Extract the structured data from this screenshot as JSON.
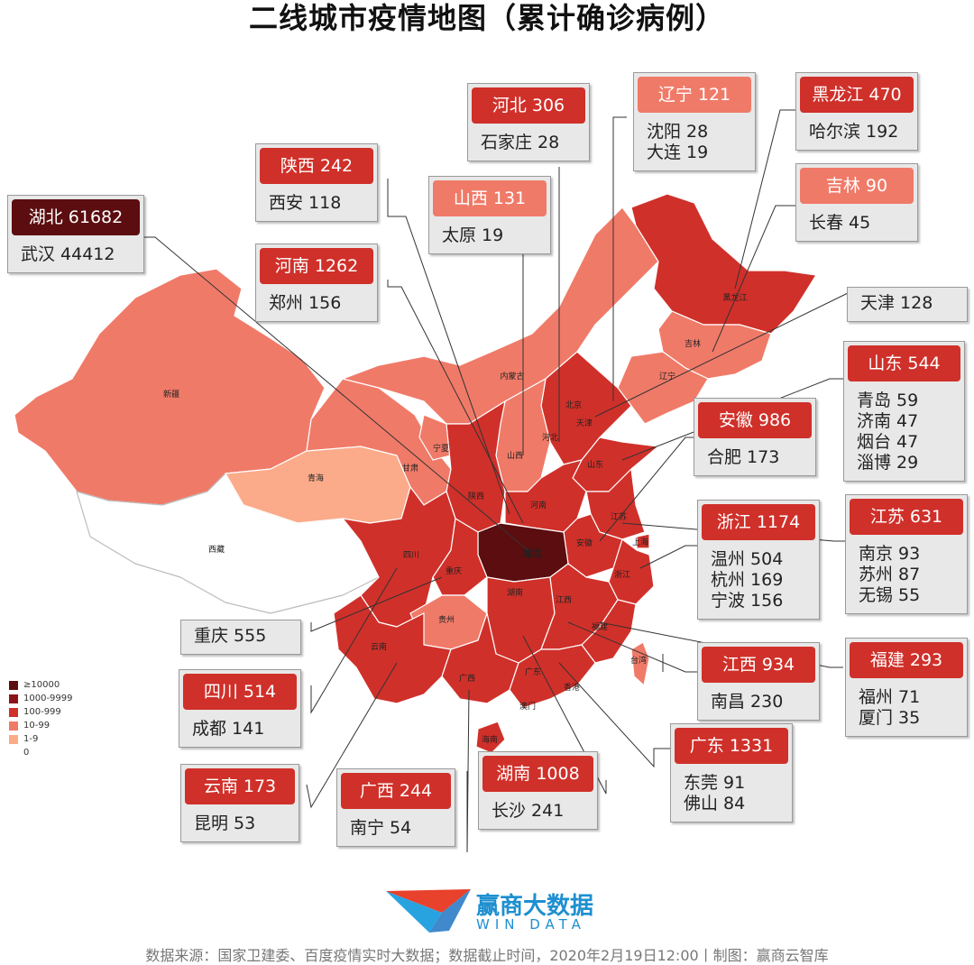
{
  "title": "二线城市疫情地图（累计确诊病例）",
  "colors": {
    "level_10000": "#5b0d0f",
    "level_1000": "#8b1418",
    "level_100": "#d0302a",
    "level_10": "#f07a68",
    "level_1": "#fbab8a",
    "level_0": "#ffffff"
  },
  "legend": [
    {
      "label": "≥10000",
      "color": "#5b0d0f"
    },
    {
      "label": "1000-9999",
      "color": "#8b1418"
    },
    {
      "label": "100-999",
      "color": "#d0302a"
    },
    {
      "label": "10-99",
      "color": "#f07a68"
    },
    {
      "label": "1-9",
      "color": "#fbab8a"
    },
    {
      "label": "0",
      "color": "#ffffff"
    }
  ],
  "map_labels": {
    "heilongjiang": "黑龙江",
    "jilin": "吉林",
    "liaoning": "辽宁",
    "neimenggu": "内蒙古",
    "beijing": "北京",
    "tianjin": "天津",
    "hebei": "河北",
    "shanxi": "山西",
    "shandong": "山东",
    "ningxia": "宁夏",
    "gansu": "甘肃",
    "shaanxi": "陕西",
    "henan": "河南",
    "jiangsu": "江苏",
    "shanghai": "上海",
    "anhui": "安徽",
    "hubei": "湖北",
    "zhejiang": "浙江",
    "xinjiang": "新疆",
    "qinghai": "青海",
    "xizang": "西藏",
    "sichuan": "四川",
    "chongqing": "重庆",
    "guizhou": "贵州",
    "hunan": "湖南",
    "jiangxi": "江西",
    "fujian": "福建",
    "taiwan": "台湾",
    "yunnan": "云南",
    "guangxi": "广西",
    "guangdong": "广东",
    "xianggang": "香港",
    "aomen": "澳门",
    "hainan": "海南"
  },
  "callouts": {
    "hubei": {
      "header": "湖北 61682",
      "color": "#5b0d0f",
      "cities": [
        "武汉 44412"
      ]
    },
    "shaanxi": {
      "header": "陕西 242",
      "color": "#d0302a",
      "cities": [
        "西安 118"
      ]
    },
    "henan": {
      "header": "河南 1262",
      "color": "#d0302a",
      "cities": [
        "郑州 156"
      ]
    },
    "hebei": {
      "header": "河北 306",
      "color": "#d0302a",
      "cities": [
        "石家庄 28"
      ]
    },
    "shanxi": {
      "header": "山西 131",
      "color": "#f07a68",
      "cities": [
        "太原 19"
      ]
    },
    "liaoning": {
      "header": "辽宁 121",
      "color": "#f07a68",
      "cities": [
        "沈阳 28",
        "大连 19"
      ]
    },
    "heilongjiang": {
      "header": "黑龙江 470",
      "color": "#d0302a",
      "cities": [
        "哈尔滨 192"
      ]
    },
    "jilin": {
      "header": "吉林 90",
      "color": "#f07a68",
      "cities": [
        "长春 45"
      ]
    },
    "tianjin": {
      "header": "",
      "color": "#d0302a",
      "cities": [
        "天津 128"
      ]
    },
    "shandong": {
      "header": "山东 544",
      "color": "#d0302a",
      "cities": [
        "青岛 59",
        "济南 47",
        "烟台 47",
        "淄博 29"
      ]
    },
    "anhui": {
      "header": "安徽 986",
      "color": "#d0302a",
      "cities": [
        "合肥 173"
      ]
    },
    "zhejiang": {
      "header": "浙江 1174",
      "color": "#d0302a",
      "cities": [
        "温州 504",
        "杭州 169",
        "宁波 156"
      ]
    },
    "jiangsu": {
      "header": "江苏 631",
      "color": "#d0302a",
      "cities": [
        "南京 93",
        "苏州 87",
        "无锡 55"
      ]
    },
    "chongqing": {
      "header": "",
      "color": "#d0302a",
      "cities": [
        "重庆 555"
      ]
    },
    "sichuan": {
      "header": "四川 514",
      "color": "#d0302a",
      "cities": [
        "成都 141"
      ]
    },
    "jiangxi": {
      "header": "江西 934",
      "color": "#d0302a",
      "cities": [
        "南昌 230"
      ]
    },
    "fujian": {
      "header": "福建 293",
      "color": "#d0302a",
      "cities": [
        "福州 71",
        "厦门 35"
      ]
    },
    "guangdong": {
      "header": "广东 1331",
      "color": "#d0302a",
      "cities": [
        "东莞 91",
        "佛山 84"
      ]
    },
    "yunnan": {
      "header": "云南 173",
      "color": "#d0302a",
      "cities": [
        "昆明 53"
      ]
    },
    "guangxi": {
      "header": "广西 244",
      "color": "#d0302a",
      "cities": [
        "南宁 54"
      ]
    },
    "hunan": {
      "header": "湖南 1008",
      "color": "#d0302a",
      "cities": [
        "长沙 241"
      ]
    }
  },
  "logo": {
    "name": "赢商大数据",
    "sub": "WIN DATA"
  },
  "footer": "数据来源：国家卫建委、百度疫情实时大数据；数据截止时间，2020年2月19日12:00丨制图：赢商云智库"
}
